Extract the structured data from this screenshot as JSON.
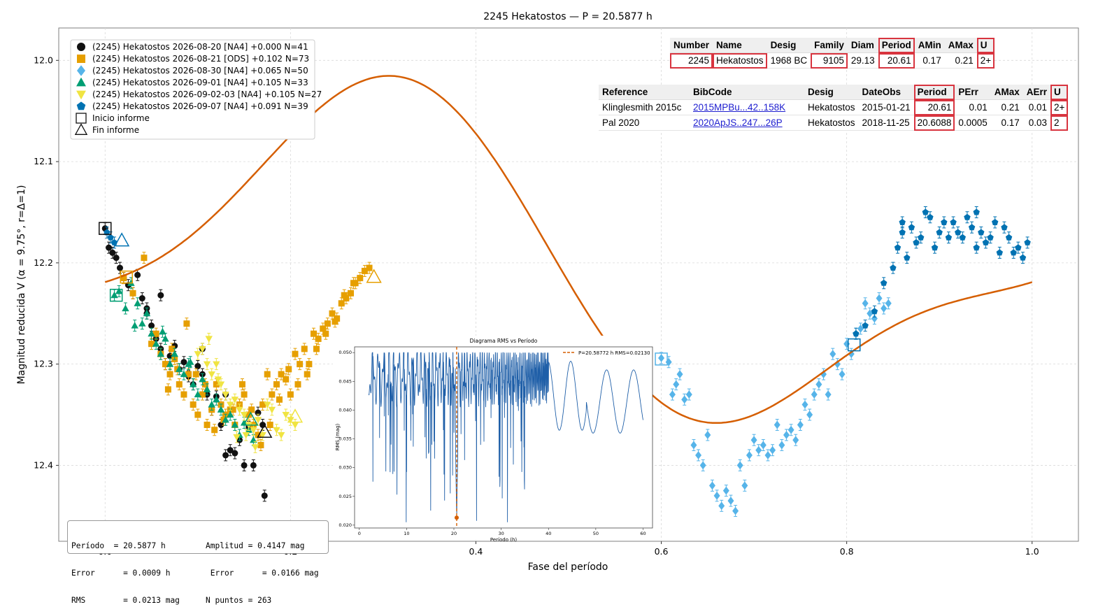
{
  "chart_data": {
    "type": "scatter",
    "title": "2245 Hekatostos — P = 20.5877 h",
    "xlabel": "Fase del período",
    "ylabel": "Magnitud reducida V  (α = 9.75°, r=Δ=1)",
    "xlim": [
      -0.05,
      1.05
    ],
    "ylim": [
      12.475,
      11.968
    ],
    "y_inverted": true,
    "xticks": [
      "0.0",
      "0.2",
      "0.4",
      "0.6",
      "0.8",
      "1.0"
    ],
    "yticks": [
      "12.0",
      "12.1",
      "12.2",
      "12.3",
      "12.4"
    ],
    "grid": true,
    "legend_position": "top-left",
    "series": [
      {
        "name": "(2245) Hekatostos 2026-08-20 [NA4] +0.000 N=41",
        "marker": "circle",
        "color": "#111111",
        "x": [
          0.0,
          0.004,
          0.008,
          0.012,
          0.016,
          0.02,
          0.025,
          0.03,
          0.035,
          0.04,
          0.045,
          0.05,
          0.055,
          0.06,
          0.065,
          0.07,
          0.075,
          0.08,
          0.085,
          0.09,
          0.095,
          0.1,
          0.105,
          0.11,
          0.115,
          0.12,
          0.125,
          0.13,
          0.135,
          0.14,
          0.145,
          0.15,
          0.155,
          0.16,
          0.165,
          0.17,
          0.172,
          0.13,
          0.105,
          0.06,
          0.045
        ],
        "y": [
          12.166,
          12.185,
          12.19,
          12.195,
          12.205,
          12.215,
          12.222,
          12.23,
          12.212,
          12.235,
          12.25,
          12.262,
          12.275,
          12.285,
          12.3,
          12.292,
          12.282,
          12.305,
          12.298,
          12.312,
          12.32,
          12.302,
          12.31,
          12.33,
          12.345,
          12.332,
          12.36,
          12.33,
          12.385,
          12.388,
          12.375,
          12.4,
          12.362,
          12.4,
          12.348,
          12.36,
          12.43,
          12.39,
          12.285,
          12.232,
          12.245
        ]
      },
      {
        "name": "(2245) Hekatostos 2026-08-21 [ODS] +0.102 N=73",
        "marker": "square",
        "color": "#e69f00",
        "x": [
          0.02,
          0.03,
          0.042,
          0.05,
          0.055,
          0.06,
          0.065,
          0.07,
          0.075,
          0.08,
          0.085,
          0.09,
          0.095,
          0.1,
          0.105,
          0.11,
          0.115,
          0.12,
          0.125,
          0.13,
          0.135,
          0.14,
          0.145,
          0.15,
          0.155,
          0.16,
          0.165,
          0.17,
          0.175,
          0.18,
          0.185,
          0.19,
          0.195,
          0.2,
          0.205,
          0.21,
          0.215,
          0.22,
          0.225,
          0.23,
          0.235,
          0.24,
          0.245,
          0.25,
          0.255,
          0.26,
          0.265,
          0.27,
          0.275,
          0.28,
          0.285,
          0.068,
          0.072,
          0.078,
          0.088,
          0.098,
          0.108,
          0.118,
          0.128,
          0.138,
          0.148,
          0.158,
          0.168,
          0.178,
          0.188,
          0.198,
          0.208,
          0.218,
          0.228,
          0.238,
          0.248,
          0.258,
          0.268
        ],
        "y": [
          12.215,
          12.23,
          12.195,
          12.28,
          12.27,
          12.29,
          12.3,
          12.31,
          12.295,
          12.32,
          12.33,
          12.31,
          12.34,
          12.35,
          12.33,
          12.36,
          12.345,
          12.32,
          12.34,
          12.35,
          12.345,
          12.36,
          12.34,
          12.33,
          12.35,
          12.36,
          12.37,
          12.34,
          12.31,
          12.33,
          12.32,
          12.31,
          12.315,
          12.33,
          12.29,
          12.3,
          12.285,
          12.3,
          12.27,
          12.275,
          12.265,
          12.26,
          12.25,
          12.255,
          12.24,
          12.235,
          12.23,
          12.22,
          12.215,
          12.208,
          12.205,
          12.325,
          12.285,
          12.305,
          12.26,
          12.31,
          12.32,
          12.365,
          12.355,
          12.345,
          12.32,
          12.345,
          12.38,
          12.36,
          12.335,
          12.305,
          12.32,
          12.31,
          12.285,
          12.27,
          12.258,
          12.232,
          12.22
        ]
      },
      {
        "name": "(2245) Hekatostos 2026-08-30 [NA4] +0.065 N=50",
        "marker": "diamond",
        "color": "#56b4e9",
        "x": [
          0.6,
          0.608,
          0.612,
          0.616,
          0.62,
          0.625,
          0.63,
          0.635,
          0.64,
          0.645,
          0.65,
          0.655,
          0.66,
          0.665,
          0.67,
          0.675,
          0.68,
          0.685,
          0.69,
          0.695,
          0.7,
          0.705,
          0.71,
          0.715,
          0.72,
          0.725,
          0.73,
          0.735,
          0.74,
          0.745,
          0.75,
          0.755,
          0.76,
          0.765,
          0.77,
          0.775,
          0.78,
          0.785,
          0.79,
          0.795,
          0.8,
          0.805,
          0.81,
          0.815,
          0.82,
          0.825,
          0.83,
          0.835,
          0.84,
          0.845
        ],
        "y": [
          12.294,
          12.298,
          12.33,
          12.32,
          12.31,
          12.335,
          12.33,
          12.38,
          12.39,
          12.4,
          12.37,
          12.42,
          12.43,
          12.44,
          12.425,
          12.435,
          12.445,
          12.4,
          12.42,
          12.39,
          12.375,
          12.385,
          12.38,
          12.39,
          12.385,
          12.36,
          12.38,
          12.37,
          12.365,
          12.375,
          12.36,
          12.34,
          12.35,
          12.33,
          12.32,
          12.31,
          12.33,
          12.29,
          12.3,
          12.31,
          12.28,
          12.29,
          12.27,
          12.265,
          12.24,
          12.25,
          12.255,
          12.235,
          12.245,
          12.24
        ]
      },
      {
        "name": "(2245) Hekatostos 2026-09-01 [NA4] +0.105 N=33",
        "marker": "triangle-up",
        "color": "#009e73",
        "x": [
          0.01,
          0.015,
          0.022,
          0.028,
          0.035,
          0.04,
          0.045,
          0.05,
          0.055,
          0.06,
          0.065,
          0.07,
          0.075,
          0.08,
          0.085,
          0.09,
          0.095,
          0.1,
          0.105,
          0.11,
          0.115,
          0.12,
          0.125,
          0.13,
          0.135,
          0.14,
          0.145,
          0.15,
          0.155,
          0.16,
          0.032,
          0.062,
          0.092
        ],
        "y": [
          12.232,
          12.228,
          12.245,
          12.22,
          12.24,
          12.26,
          12.25,
          12.27,
          12.28,
          12.29,
          12.275,
          12.3,
          12.29,
          12.305,
          12.31,
          12.3,
          12.32,
          12.33,
          12.315,
          12.325,
          12.34,
          12.335,
          12.345,
          12.355,
          12.35,
          12.36,
          12.37,
          12.358,
          12.365,
          12.375,
          12.262,
          12.268,
          12.298
        ]
      },
      {
        "name": "(2245) Hekatostos 2026-09-02-03 [NA4] +0.105 N=27",
        "marker": "triangle-down",
        "color": "#f0e442",
        "x": [
          0.1,
          0.105,
          0.11,
          0.115,
          0.12,
          0.125,
          0.13,
          0.135,
          0.14,
          0.145,
          0.15,
          0.155,
          0.16,
          0.165,
          0.17,
          0.175,
          0.18,
          0.185,
          0.19,
          0.195,
          0.2,
          0.205,
          0.112,
          0.122,
          0.142,
          0.152,
          0.162
        ],
        "y": [
          12.29,
          12.285,
          12.3,
          12.31,
          12.3,
          12.32,
          12.33,
          12.34,
          12.335,
          12.345,
          12.35,
          12.36,
          12.365,
          12.355,
          12.37,
          12.34,
          12.345,
          12.365,
          12.37,
          12.35,
          12.355,
          12.36,
          12.275,
          12.315,
          12.372,
          12.37,
          12.382
        ]
      },
      {
        "name": "(2245) Hekatostos 2026-09-07 [NA4] +0.091 N=39",
        "marker": "pentagon",
        "color": "#0072b2",
        "x": [
          0.002,
          0.006,
          0.01,
          0.81,
          0.82,
          0.83,
          0.84,
          0.85,
          0.855,
          0.86,
          0.865,
          0.87,
          0.875,
          0.88,
          0.885,
          0.89,
          0.895,
          0.9,
          0.905,
          0.91,
          0.915,
          0.92,
          0.925,
          0.93,
          0.935,
          0.94,
          0.945,
          0.95,
          0.955,
          0.96,
          0.965,
          0.97,
          0.975,
          0.98,
          0.985,
          0.99,
          0.995,
          0.86,
          0.94
        ],
        "y": [
          12.17,
          12.175,
          12.18,
          12.27,
          12.262,
          12.248,
          12.22,
          12.205,
          12.185,
          12.17,
          12.195,
          12.165,
          12.18,
          12.175,
          12.15,
          12.155,
          12.185,
          12.17,
          12.16,
          12.175,
          12.16,
          12.17,
          12.175,
          12.155,
          12.165,
          12.15,
          12.17,
          12.18,
          12.175,
          12.16,
          12.19,
          12.165,
          12.175,
          12.19,
          12.185,
          12.195,
          12.18,
          12.16,
          12.185
        ]
      }
    ],
    "markers_report": [
      {
        "label": "Inicio informe",
        "marker": "square-open"
      },
      {
        "label": "Fin informe",
        "marker": "triangle-open"
      }
    ],
    "open_markers": [
      {
        "x": 0.0,
        "y": 12.166,
        "marker": "square",
        "color": "#111111"
      },
      {
        "x": 0.172,
        "y": 12.367,
        "marker": "triangle",
        "color": "#111111"
      },
      {
        "x": 0.023,
        "y": 12.214,
        "marker": "square",
        "color": "#e69f00"
      },
      {
        "x": 0.29,
        "y": 12.214,
        "marker": "triangle",
        "color": "#e69f00"
      },
      {
        "x": 0.6,
        "y": 12.295,
        "marker": "square",
        "color": "#56b4e9"
      },
      {
        "x": 0.012,
        "y": 12.232,
        "marker": "square",
        "color": "#009e73"
      },
      {
        "x": 0.157,
        "y": 12.355,
        "marker": "triangle",
        "color": "#009e73"
      },
      {
        "x": 0.205,
        "y": 12.352,
        "marker": "triangle",
        "color": "#f0e442"
      },
      {
        "x": 0.808,
        "y": 12.281,
        "marker": "square",
        "color": "#0072b2"
      },
      {
        "x": 0.018,
        "y": 12.178,
        "marker": "triangle",
        "color": "#0072b2"
      }
    ],
    "fit": {
      "color": "#d55e00",
      "mean": 12.199,
      "a1": 0.0,
      "b1": -0.145,
      "a2": 0.02,
      "b2": 0.05
    }
  },
  "stats": {
    "periodo": "Período  = 20.5877 h",
    "amplitud": "Amplitud = 0.4147 mag",
    "error_p": "Error      = 0.0009 h",
    "error_a": " Error      = 0.0166 mag",
    "rms": "RMS        = 0.0213 mag",
    "npuntos": "N puntos = 263"
  },
  "inset": {
    "title": "Diagrama RMS vs Período",
    "xlabel": "Período (h)",
    "ylabel": "RMS (mag)",
    "xticks": [
      "0",
      "10",
      "20",
      "30",
      "40",
      "50",
      "60"
    ],
    "yticks": [
      "0.020",
      "0.025",
      "0.030",
      "0.035",
      "0.040",
      "0.045",
      "0.050"
    ],
    "xlim": [
      -1,
      62
    ],
    "ylim": [
      0.0195,
      0.051
    ],
    "best_label": "P=20.58772 h   RMS=0.02130",
    "best_period": 20.5877,
    "best_rms": 0.0213,
    "line_color": "#1f5fa8",
    "best_color": "#d55e00"
  },
  "table_asteroid": {
    "headers": [
      "Number",
      "Name",
      "Desig",
      "Family",
      "Diam",
      "Period",
      "AMin",
      "AMax",
      "U"
    ],
    "row": [
      "2245",
      "Hekatostos",
      "1968 BC",
      "9105",
      "29.13",
      "20.61",
      "0.17",
      "0.21",
      "2+"
    ]
  },
  "table_refs": {
    "headers": [
      "Reference",
      "BibCode",
      "Desig",
      "DateObs",
      "Period",
      "PErr",
      "AMax",
      "AErr",
      "U"
    ],
    "rows": [
      [
        "Klinglesmith 2015c",
        "2015MPBu...42..158K",
        "Hekatostos",
        "2015-01-21",
        "20.61",
        "0.01",
        "0.21",
        "0.01",
        "2+"
      ],
      [
        "Pal 2020",
        "2020ApJS..247...26P",
        "Hekatostos",
        "2018-11-25",
        "20.6088",
        "0.0005",
        "0.17",
        "0.03",
        "2"
      ]
    ]
  }
}
